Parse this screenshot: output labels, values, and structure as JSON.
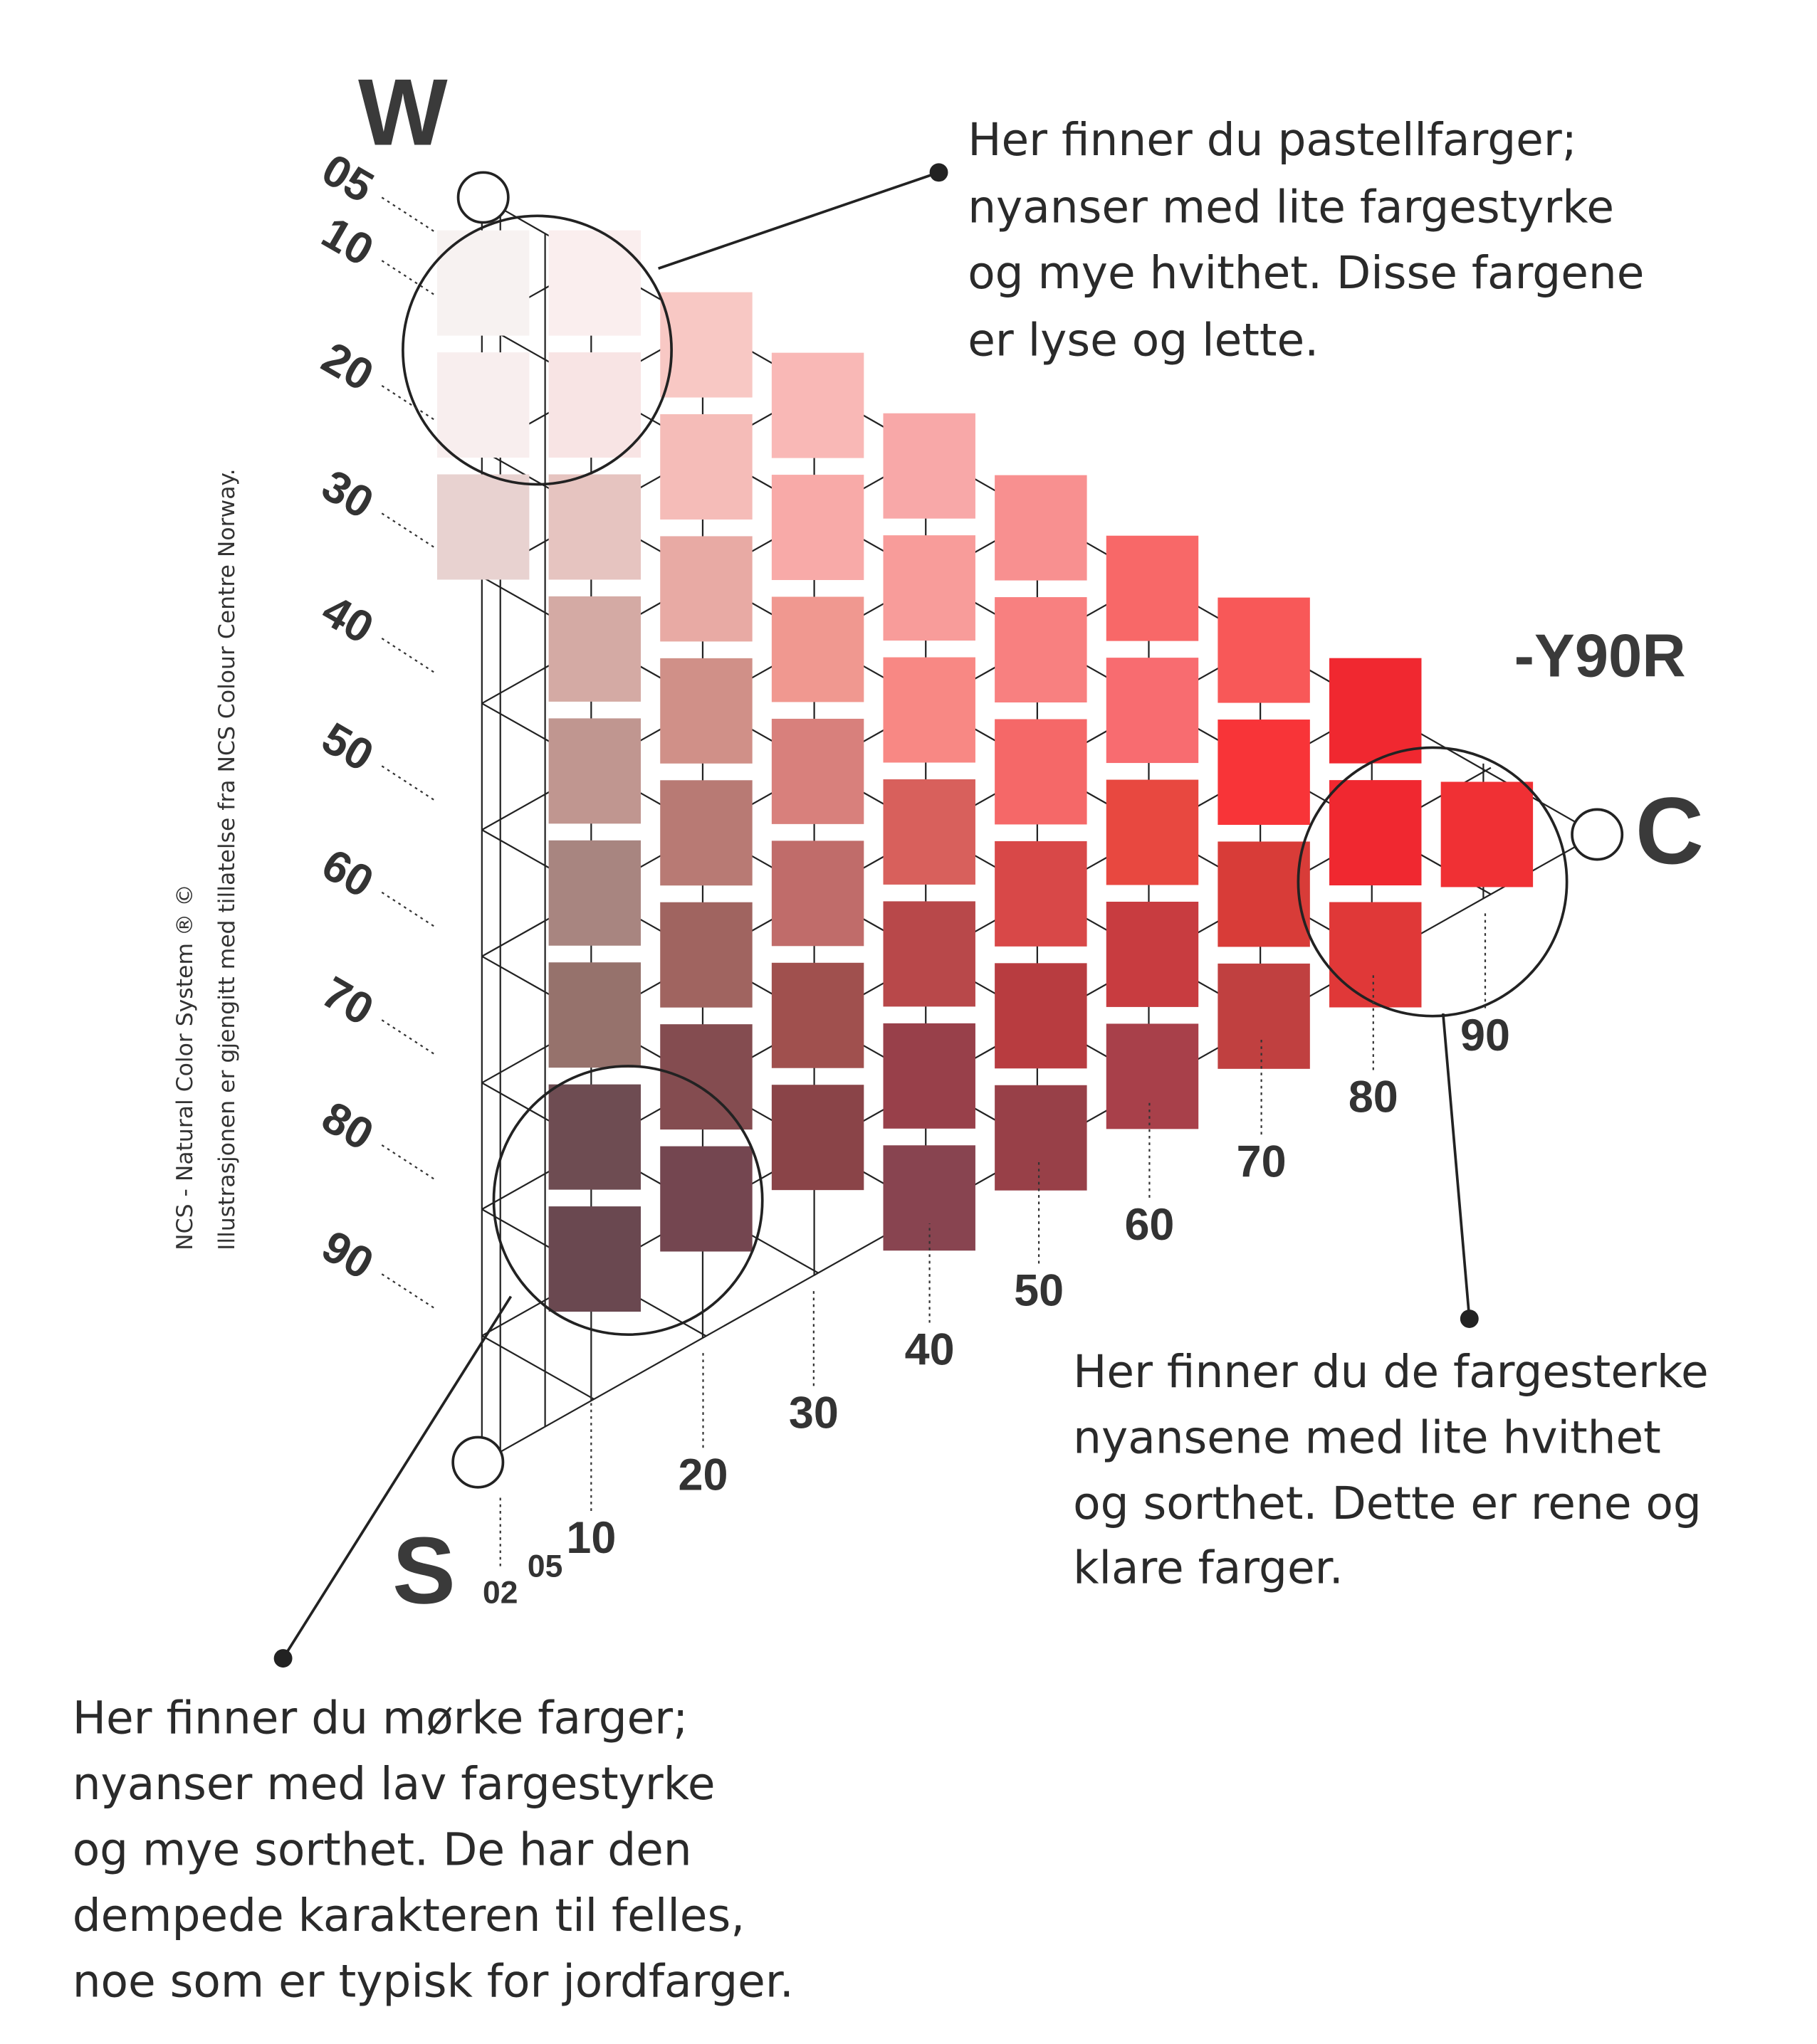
{
  "poles": {
    "white": "W",
    "black": "S",
    "chromatic": "C"
  },
  "hue": "-Y90R",
  "blackness_labels": [
    "05",
    "10",
    "20",
    "30",
    "40",
    "50",
    "60",
    "70",
    "80",
    "90"
  ],
  "chromaticness_labels": {
    "small": [
      "02",
      "05"
    ],
    "main": [
      "10",
      "20",
      "30",
      "40",
      "50",
      "60",
      "70",
      "80",
      "90"
    ]
  },
  "callouts": {
    "pastel": [
      "Her finner du pastellfarger;",
      "nyanser med lite fargestyrke",
      "og mye hvithet. Disse fargene",
      "er lyse og lette."
    ],
    "strong": [
      "Her finner du de fargesterke",
      "nyansene med lite hvithet",
      "og sorthet. Dette er rene og",
      "klare farger."
    ],
    "dark": [
      "Her finner du mørke farger;",
      "nyanser med lav fargestyrke",
      "og mye sorthet. De har den",
      "dempede karakteren til felles,",
      "noe som er typisk for jordfarger."
    ]
  },
  "credit": [
    "NCS - Natural Color System ® ©",
    "Illustrasjonen er gjengitt med tillatelse fra NCS Colour Centre Norway."
  ],
  "swatch_colors": [
    [
      "#f7f2f1",
      "#f8eeee",
      "#e8d2d0"
    ],
    [
      "#faeeee",
      "#f8e4e4",
      "#e6c4c0",
      "#d4aaa4",
      "#c09690",
      "#a88580",
      "#96726c",
      "#6e4c52",
      "#6a4850"
    ],
    [
      "#f8c8c4",
      "#f5bcb8",
      "#e8aaa4",
      "#d09088",
      "#b87a74",
      "#a06460",
      "#844c50",
      "#744650"
    ],
    [
      "#f9b8b6",
      "#f8aaa8",
      "#f09890",
      "#d8807c",
      "#c06c6a",
      "#a0504e",
      "#8a4448"
    ],
    [
      "#f8a8a8",
      "#f89c9a",
      "#f88884",
      "#d8605c",
      "#b8484a",
      "#98404a",
      "#884450"
    ],
    [
      "#f89090",
      "#f88080",
      "#f56868",
      "#d84848",
      "#b83c40",
      "#984048"
    ],
    [
      "#f86868",
      "#f86c70",
      "#e84840",
      "#c83c40",
      "#a8404a"
    ],
    [
      "#f85858",
      "#f83438",
      "#d83c38",
      "#c04040"
    ],
    [
      "#f02830",
      "#f02830",
      "#e03838"
    ],
    [
      "#f03034"
    ]
  ]
}
